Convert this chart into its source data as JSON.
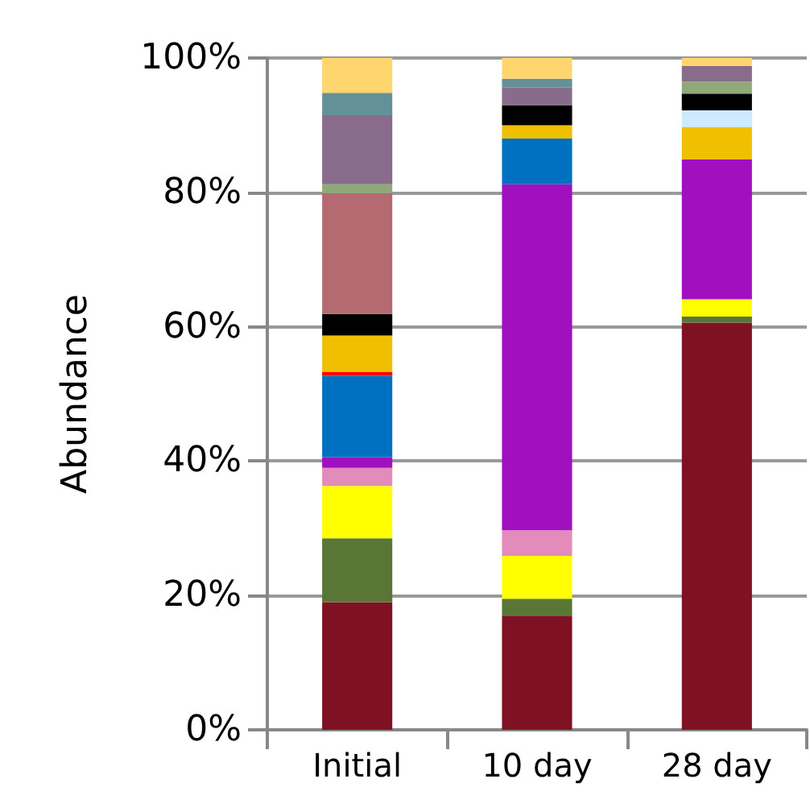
{
  "chart_data": {
    "type": "bar",
    "stacked": true,
    "ylabel": "Abundance",
    "categories": [
      "Initial",
      "10 day",
      "28 day"
    ],
    "series": [
      {
        "color": "#7f1222",
        "values": [
          19,
          17,
          60.6
        ]
      },
      {
        "color": "#5a7636",
        "values": [
          9.5,
          2.5,
          0.9
        ]
      },
      {
        "color": "#ffff00",
        "values": [
          7.8,
          6.4,
          2.6
        ]
      },
      {
        "color": "#e38bbb",
        "values": [
          2.7,
          3.8,
          null
        ]
      },
      {
        "color": "#a010be",
        "values": [
          1.6,
          51.5,
          20.8
        ]
      },
      {
        "color": "#0070c0",
        "values": [
          12.1,
          6.8,
          null
        ]
      },
      {
        "color": "#ff0000",
        "values": [
          0.6,
          null,
          null
        ]
      },
      {
        "color": "#f0bf00",
        "values": [
          5.4,
          2,
          4.8
        ]
      },
      {
        "color": "#cdeaff",
        "values": [
          null,
          null,
          2.5
        ]
      },
      {
        "color": "#000000",
        "values": [
          3.2,
          3,
          2.5
        ]
      },
      {
        "color": "#b46a70",
        "values": [
          18,
          null,
          null
        ]
      },
      {
        "color": "#8faa78",
        "values": [
          1.3,
          null,
          1.8
        ]
      },
      {
        "color": "#896b8b",
        "values": [
          10.3,
          2.6,
          2.3
        ]
      },
      {
        "color": "#649197",
        "values": [
          3.3,
          1.3,
          null
        ]
      },
      {
        "color": "#ffd56e",
        "values": [
          5.2,
          3.1,
          1.2
        ]
      }
    ],
    "ylim": [
      0,
      100
    ],
    "yticks": [
      {
        "value": 0,
        "label": "0%"
      },
      {
        "value": 20,
        "label": "20%"
      },
      {
        "value": 40,
        "label": "40%"
      },
      {
        "value": 60,
        "label": "60%"
      },
      {
        "value": 80,
        "label": "80%"
      },
      {
        "value": 100,
        "label": "100%"
      }
    ],
    "grid": "y"
  }
}
